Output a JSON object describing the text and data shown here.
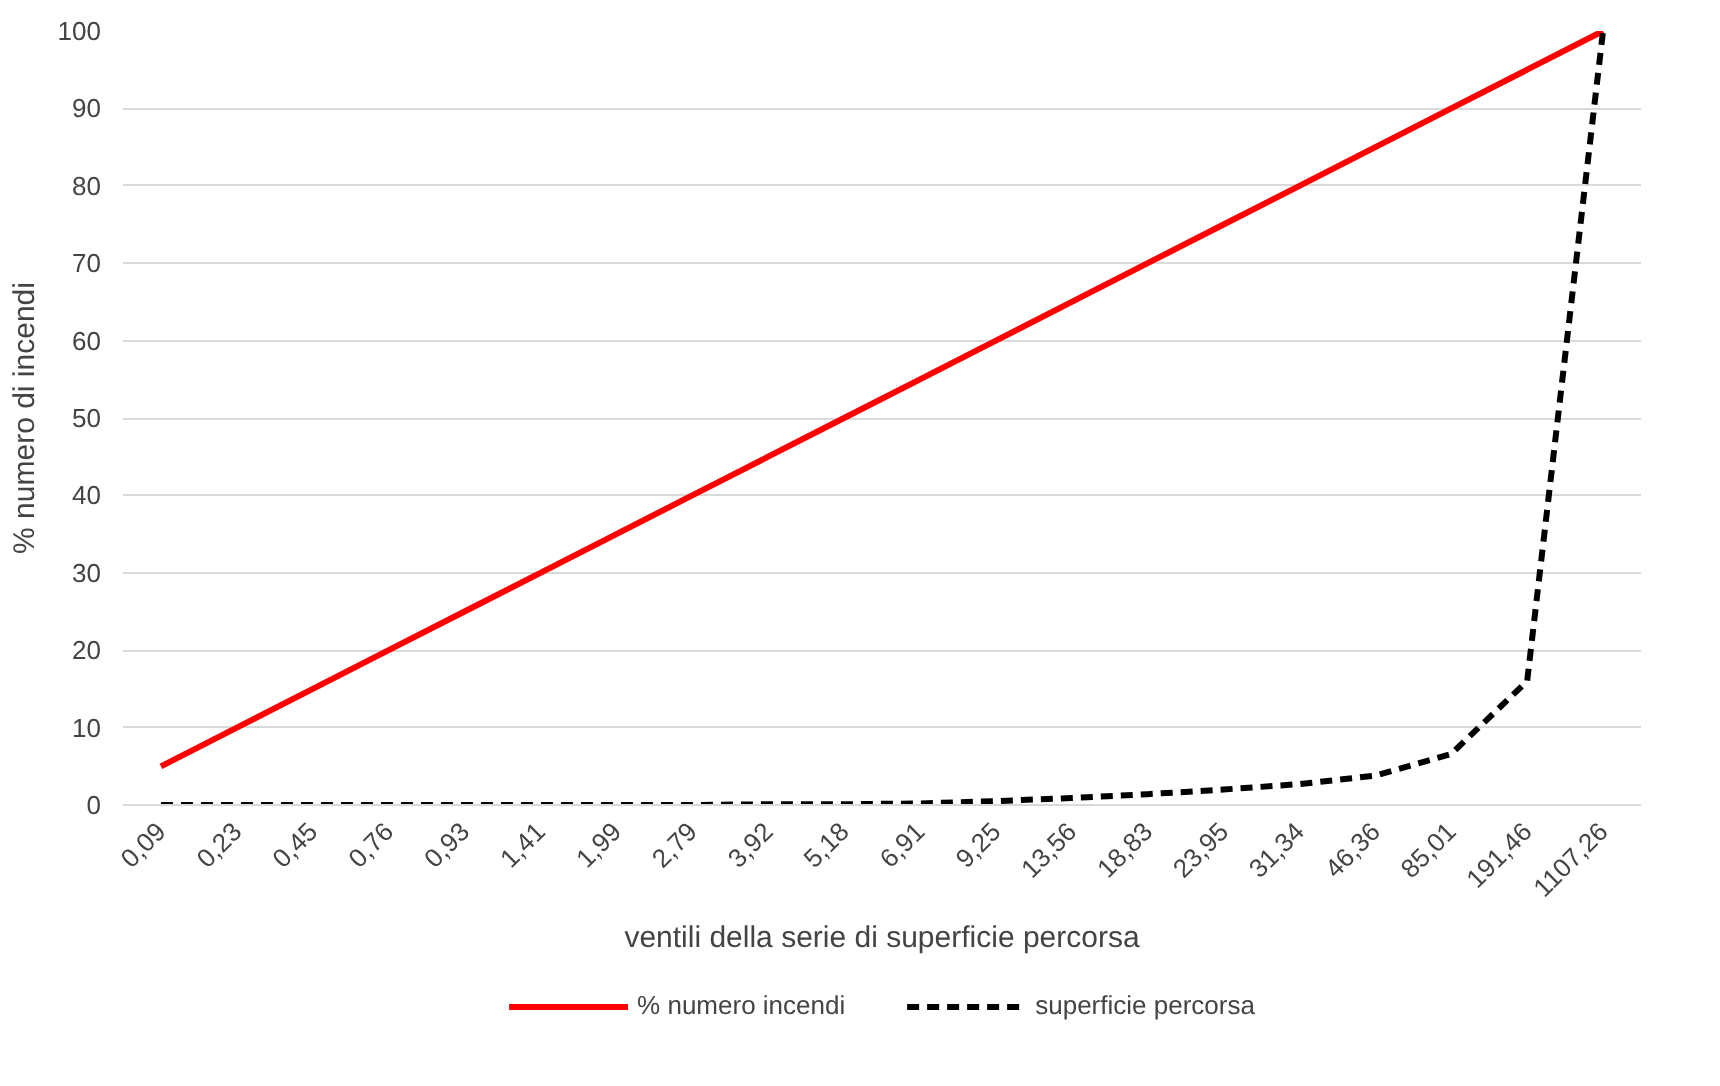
{
  "chart_data": {
    "type": "line",
    "xlabel": "ventili della serie di superficie percorsa",
    "ylabel": "% numero di incendi",
    "categories": [
      "0,09",
      "0,23",
      "0,45",
      "0,76",
      "0,93",
      "1,41",
      "1,99",
      "2,79",
      "3,92",
      "5,18",
      "6,91",
      "9,25",
      "13,56",
      "18,83",
      "23,95",
      "31,34",
      "46,36",
      "85,01",
      "191,46",
      "1107,26"
    ],
    "series": [
      {
        "name": "% numero incendi",
        "color": "#ff0000",
        "line_style": "solid",
        "values": [
          5,
          10,
          15,
          20,
          25,
          30,
          35,
          40,
          45,
          50,
          55,
          60,
          65,
          70,
          75,
          80,
          85,
          90,
          95,
          100
        ]
      },
      {
        "name": "superficie percorsa",
        "color": "#000000",
        "line_style": "dashed",
        "values": [
          0,
          0,
          0,
          0,
          0,
          0,
          0,
          0,
          0.1,
          0.1,
          0.2,
          0.5,
          0.9,
          1.4,
          2,
          2.7,
          3.8,
          6.6,
          16,
          100
        ]
      }
    ],
    "ylim": [
      0,
      100
    ],
    "yticks": [
      0,
      10,
      20,
      30,
      40,
      50,
      60,
      70,
      80,
      90,
      100
    ],
    "grid": "y",
    "legend": "bottom"
  }
}
